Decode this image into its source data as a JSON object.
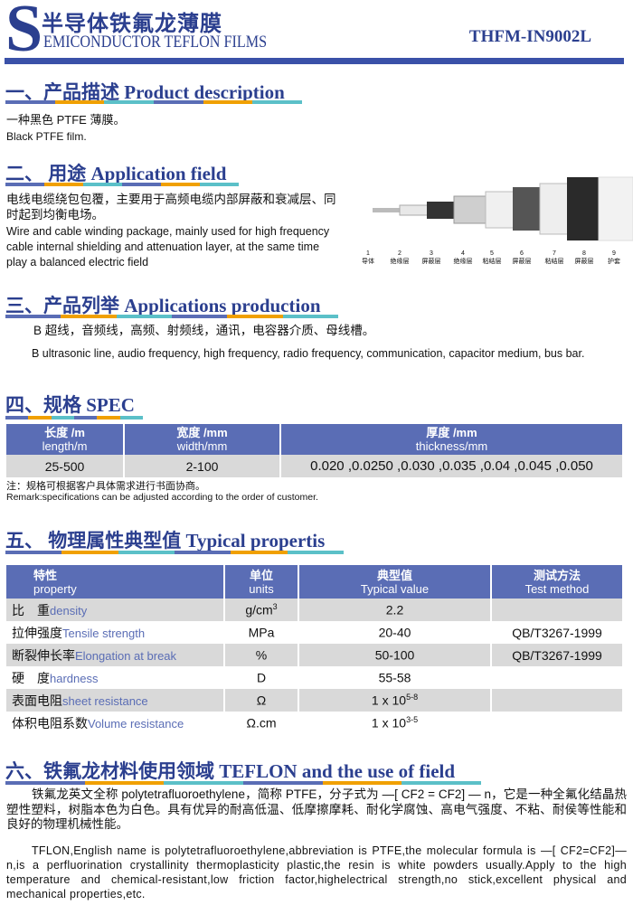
{
  "header": {
    "logo_letter": "S",
    "title_cn": "半导体铁氟龙薄膜",
    "title_en": "EMICONDUCTOR TEFLON FILMS",
    "code": "THFM-IN9002L"
  },
  "sections": {
    "s1": {
      "title": "一、产品描述 Product description",
      "cn": "一种黑色 PTFE 薄膜。",
      "en": "Black PTFE film."
    },
    "s2": {
      "title": "二、 用途 Application field",
      "cn": "电线电缆绕包包覆，主要用于高频电缆内部屏蔽和衰减层、同时起到均衡电场。",
      "en": "Wire and cable winding package, mainly used for high frequency cable internal shielding and attenuation layer, at the same time play a balanced electric field",
      "diagram_labels": [
        {
          "n": "1",
          "t": "导体"
        },
        {
          "n": "2",
          "t": "绝缘层"
        },
        {
          "n": "3",
          "t": "屏蔽层"
        },
        {
          "n": "4",
          "t": "绝缘层"
        },
        {
          "n": "5",
          "t": "粘结层"
        },
        {
          "n": "6",
          "t": "屏蔽层"
        },
        {
          "n": "7",
          "t": "粘结层"
        },
        {
          "n": "8",
          "t": "屏蔽层"
        },
        {
          "n": "9",
          "t": "护套"
        }
      ]
    },
    "s3": {
      "title": "三、产品列举 Applications production",
      "cn": "B 超线，音频线，高频、射频线，通讯，电容器介质、母线槽。",
      "en": "B ultrasonic line, audio frequency, high frequency, radio frequency, communication, capacitor medium, bus bar."
    },
    "s4": {
      "title": "四、规格 SPEC",
      "headers": [
        {
          "cn": "长度 /m",
          "en": "length/m"
        },
        {
          "cn": "宽度 /mm",
          "en": "width/mm"
        },
        {
          "cn": "厚度 /mm",
          "en": "thickness/mm"
        }
      ],
      "row": [
        "25-500",
        "2-100",
        "0.020 ,0.0250 ,0.030 ,0.035 ,0.04 ,0.045 ,0.050"
      ],
      "note_cn": "注：规格可根据客户具体需求进行书面协商。",
      "note_en": "Remark:specifications can be adjusted according to the order of customer."
    },
    "s5": {
      "title": "五、 物理属性典型值 Typical propertis",
      "headers": [
        {
          "cn": "特性",
          "en": "property"
        },
        {
          "cn": "单位",
          "en": "units"
        },
        {
          "cn": "典型值",
          "en": "Typical value"
        },
        {
          "cn": "测试方法",
          "en": "Test method"
        }
      ],
      "rows": [
        {
          "cn": "比　重",
          "en": "density",
          "unit": "g/cm",
          "unit_sup": "3",
          "val": "2.2",
          "val_sup": "",
          "method": ""
        },
        {
          "cn": "拉伸强度",
          "en": "Tensile strength",
          "unit": "MPa",
          "unit_sup": "",
          "val": "20-40",
          "val_sup": "",
          "method": "QB/T3267-1999"
        },
        {
          "cn": "断裂伸长率",
          "en": "Elongation at break",
          "unit": "%",
          "unit_sup": "",
          "val": "50-100",
          "val_sup": "",
          "method": "QB/T3267-1999"
        },
        {
          "cn": "硬　度",
          "en": "hardness",
          "unit": "D",
          "unit_sup": "",
          "val": "55-58",
          "val_sup": "",
          "method": ""
        },
        {
          "cn": "表面电阻",
          "en": "sheet resistance",
          "unit": "Ω",
          "unit_sup": "",
          "val": "1 x 10",
          "val_sup": "5-8",
          "method": ""
        },
        {
          "cn": "体积电阻系数",
          "en": "Volume resistance",
          "unit": "Ω.cm",
          "unit_sup": "",
          "val": "1 x 10",
          "val_sup": "3-5",
          "method": ""
        }
      ]
    },
    "s6": {
      "title": "六、铁氟龙材料使用领域 TEFLON and the use of field",
      "cn": "铁氟龙英文全称 polytetrafluoroethylene，简称 PTFE，分子式为 —[ CF2 = CF2] — n，它是一种全氟化结晶热塑性塑料，树脂本色为白色。具有优异的耐高低温、低摩擦摩耗、耐化学腐蚀、高电气强度、不粘、耐侯等性能和良好的物理机械性能。",
      "en": "TFLON,English name is polytetrafluoroethylene,abbreviation is PTFE,the molecular formula is —[ CF2=CF2]—n,is a perfluorination crystallinity thermoplasticity plastic,the resin is white powders usually.Apply to the high temperature and chemical-resistant,low friction factor,highelectrical strength,no stick,excellent  physical and mechanical properties,etc."
    }
  },
  "colors": {
    "brand": "#2b3f8f",
    "table_header": "#5a6db5",
    "row_gray": "#d9d9d9",
    "accent_orange": "#f0a000",
    "accent_teal": "#5bc0c8"
  }
}
